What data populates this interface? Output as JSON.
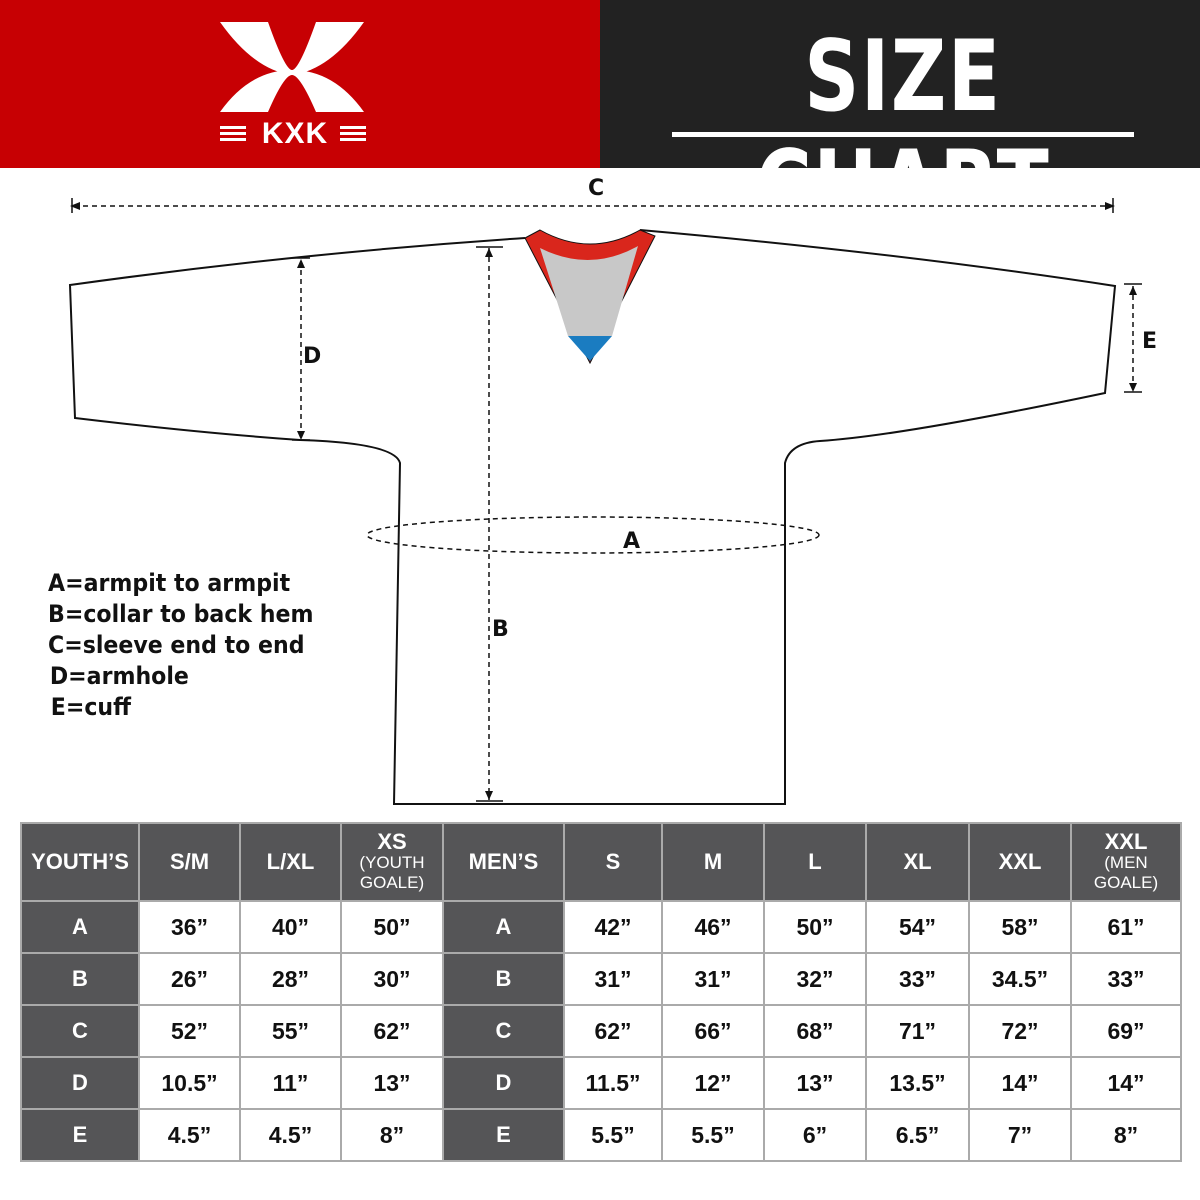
{
  "brand": {
    "name": "KXK",
    "colors": {
      "red": "#c70003",
      "dark": "#222222",
      "table_header": "#555557"
    }
  },
  "title": "SIZE CHART",
  "diagram_labels": {
    "a": "A",
    "b": "B",
    "c": "C",
    "d": "D",
    "e": "E"
  },
  "legend": [
    "A=armpit to armpit",
    "B=collar to back hem",
    "C=sleeve end to end",
    "D=armhole",
    "E=cuff"
  ],
  "table": {
    "headers": [
      {
        "main": "YOUTH’S"
      },
      {
        "main": "S/M"
      },
      {
        "main": "L/XL"
      },
      {
        "main": "XS",
        "sub": "(YOUTH GOALE)"
      },
      {
        "main": "MEN’S"
      },
      {
        "main": "S"
      },
      {
        "main": "M"
      },
      {
        "main": "L"
      },
      {
        "main": "XL"
      },
      {
        "main": "XXL"
      },
      {
        "main": "XXL",
        "sub": "(MEN GOALE)"
      }
    ],
    "rows": [
      [
        "A",
        "36”",
        "40”",
        "50”",
        "A",
        "42”",
        "46”",
        "50”",
        "54”",
        "58”",
        "61”"
      ],
      [
        "B",
        "26”",
        "28”",
        "30”",
        "B",
        "31”",
        "31”",
        "32”",
        "33”",
        "34.5”",
        "33”"
      ],
      [
        "C",
        "52”",
        "55”",
        "62”",
        "C",
        "62”",
        "66”",
        "68”",
        "71”",
        "72”",
        "69”"
      ],
      [
        "D",
        "10.5”",
        "11”",
        "13”",
        "D",
        "11.5”",
        "12”",
        "13”",
        "13.5”",
        "14”",
        "14”"
      ],
      [
        "E",
        "4.5”",
        "4.5”",
        "8”",
        "E",
        "5.5”",
        "5.5”",
        "6”",
        "6.5”",
        "7”",
        "8”"
      ]
    ]
  }
}
